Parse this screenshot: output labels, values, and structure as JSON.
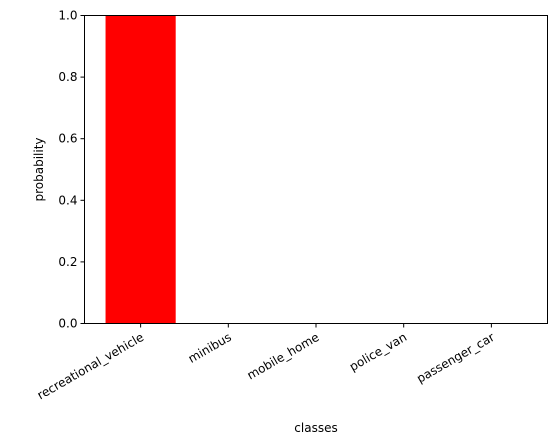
{
  "chart_data": {
    "type": "bar",
    "categories": [
      "recreational_vehicle",
      "minibus",
      "mobile_home",
      "police_van",
      "passenger_car"
    ],
    "values": [
      1.0,
      0.0,
      0.0,
      0.0,
      0.0
    ],
    "title": "",
    "xlabel": "classes",
    "ylabel": "probability",
    "ylim": [
      0,
      1.0
    ],
    "yticks": [
      0.0,
      0.2,
      0.4,
      0.6,
      0.8,
      1.0
    ],
    "ytick_labels": [
      "0.0",
      "0.2",
      "0.4",
      "0.6",
      "0.8",
      "1.0"
    ],
    "bar_color": "#ff0000",
    "grid": false,
    "xtick_rotation": "30 degrees, right-aligned"
  }
}
